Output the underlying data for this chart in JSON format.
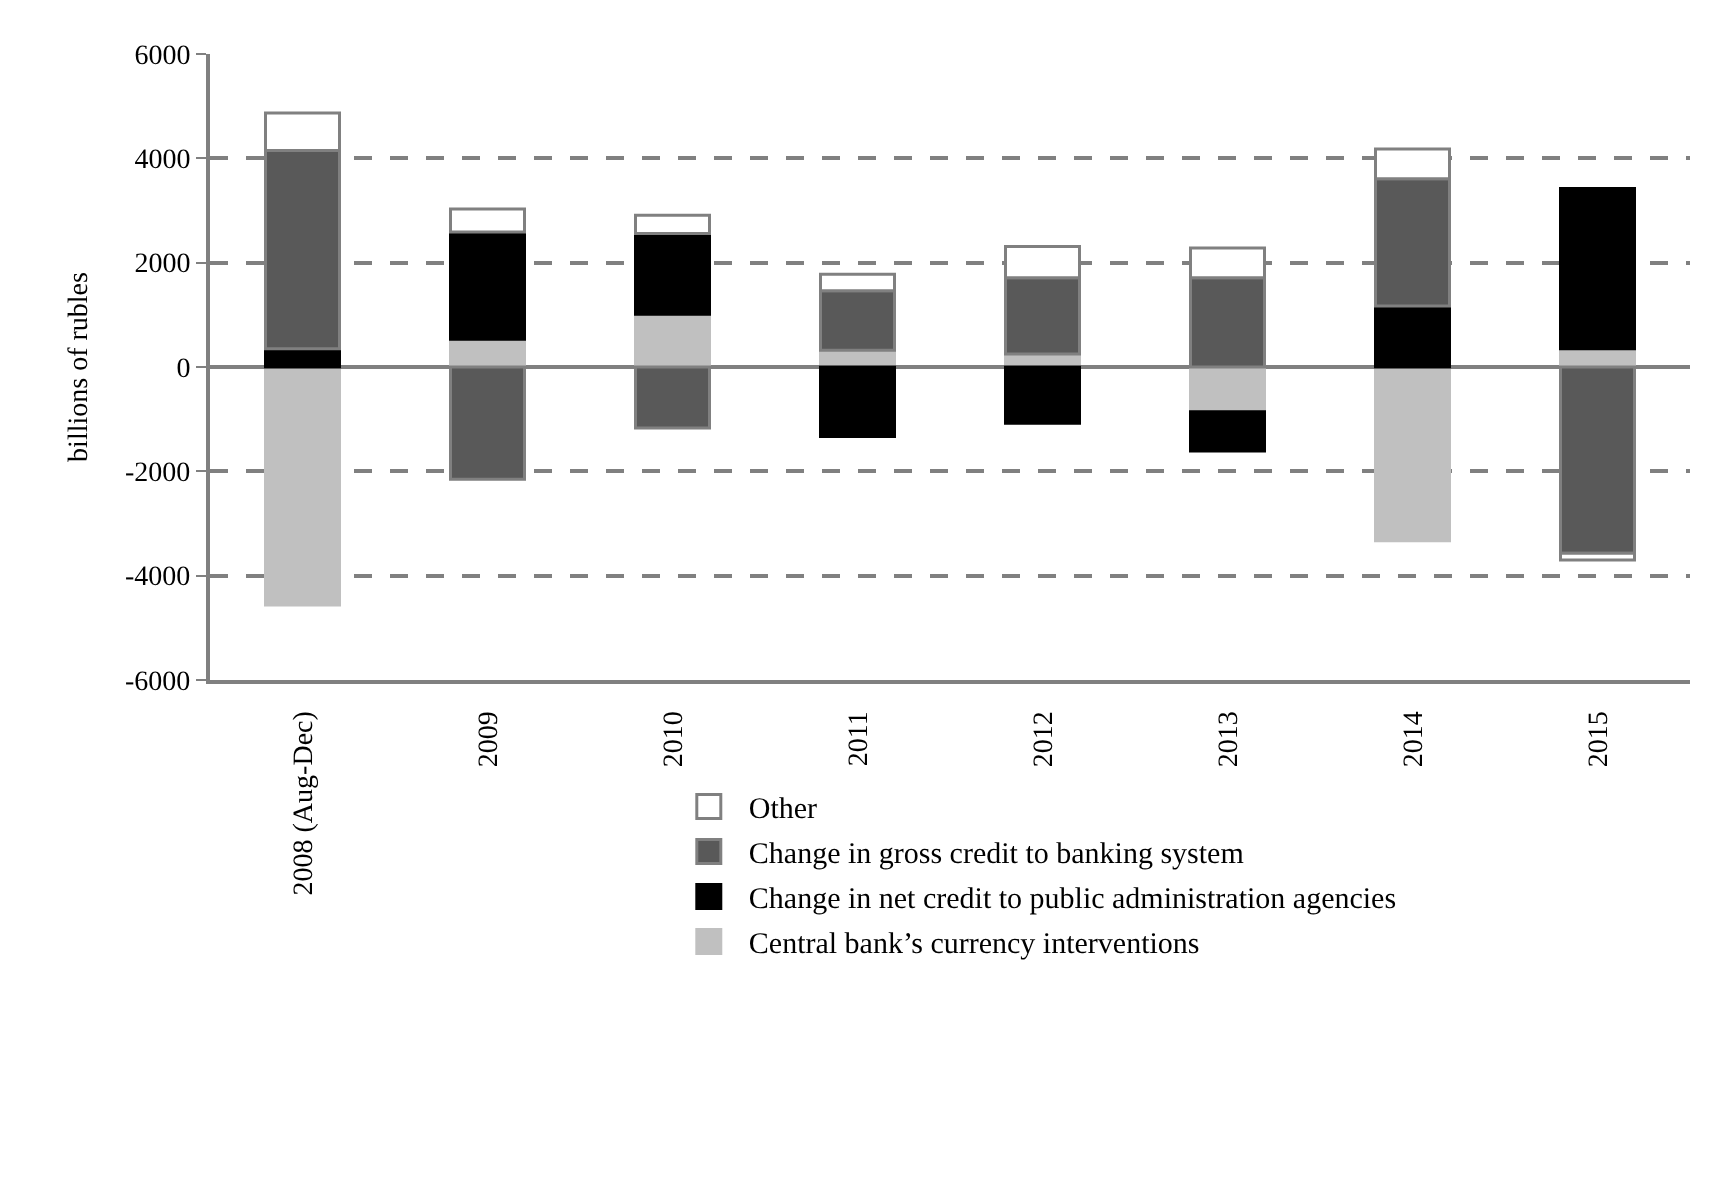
{
  "chart_data": {
    "type": "bar",
    "stacked": true,
    "ylabel": "billions of rubles",
    "categories": [
      "2008 (Aug-Dec)",
      "2009",
      "2010",
      "2011",
      "2012",
      "2013",
      "2014",
      "2015"
    ],
    "series": [
      {
        "name": "Central bank’s currency interventions",
        "color": "#c0c0c0",
        "values": [
          -4560,
          530,
          1010,
          320,
          250,
          -860,
          -3330,
          350
        ]
      },
      {
        "name": "Change in net credit to public administration agencies",
        "color": "#000000",
        "values": [
          350,
          2060,
          1550,
          -1330,
          -1080,
          -750,
          1170,
          3070
        ]
      },
      {
        "name": "Change in gross credit to banking system",
        "color": "#595959",
        "values": [
          3800,
          -2150,
          -1170,
          1140,
          1460,
          1710,
          2440,
          -3570
        ]
      },
      {
        "name": "Other",
        "color": "#ffffff",
        "values": [
          720,
          440,
          350,
          320,
          600,
          570,
          570,
          -130
        ]
      }
    ],
    "ylim": [
      -6000,
      6000
    ],
    "yticks": [
      -6000,
      -4000,
      -2000,
      0,
      2000,
      4000,
      6000
    ],
    "grid": "y",
    "legend": "bottom"
  }
}
